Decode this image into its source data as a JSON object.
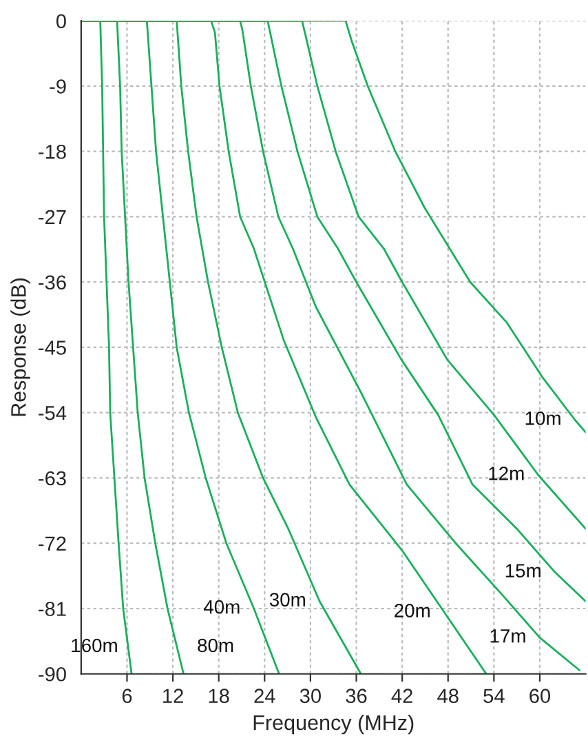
{
  "chart_data": {
    "type": "line",
    "xlabel": "Frequency (MHz)",
    "ylabel": "Response (dB)",
    "xlim": [
      0,
      66
    ],
    "xticks": [
      6,
      12,
      18,
      24,
      30,
      36,
      42,
      48,
      54,
      60
    ],
    "ylim": [
      -90,
      0
    ],
    "yticks": [
      0,
      -9,
      -18,
      -27,
      -36,
      -45,
      -54,
      -63,
      -72,
      -81,
      -90
    ],
    "grid": true,
    "marker": "none",
    "line_style": "solid",
    "series": [
      {
        "name": "160m",
        "color": "#1aaf5d",
        "x": [
          0,
          2.5,
          2.75,
          3.0,
          3.65,
          3.8,
          4.9,
          5.5,
          6.6
        ],
        "values": [
          0,
          0,
          -9,
          -27,
          -45,
          -54,
          -72,
          -81,
          -90
        ]
      },
      {
        "name": "80m",
        "color": "#1aaf5d",
        "x": [
          0,
          4.7,
          5.1,
          5.3,
          5.75,
          6.2,
          6.8,
          7.4,
          8.3,
          9.7,
          11.3,
          13.4
        ],
        "values": [
          0,
          0,
          -9,
          -18,
          -27,
          -36,
          -45,
          -54,
          -63,
          -72,
          -81,
          -90
        ]
      },
      {
        "name": "40m",
        "color": "#1aaf5d",
        "x": [
          0,
          8.6,
          9.2,
          9.8,
          10.7,
          11.6,
          12.5,
          14.1,
          16.3,
          19.0,
          22.6,
          25.9
        ],
        "values": [
          0,
          0,
          -9,
          -18,
          -27,
          -36,
          -45,
          -54,
          -63,
          -72,
          -81,
          -90
        ]
      },
      {
        "name": "30m",
        "color": "#1aaf5d",
        "x": [
          0,
          12.5,
          13.1,
          14.0,
          15.1,
          16.6,
          18.4,
          20.5,
          23.8,
          27.1,
          31.2,
          36.6
        ],
        "values": [
          0,
          0,
          -9,
          -18,
          -27,
          -36,
          -45,
          -54,
          -63,
          -70,
          -80,
          -90
        ]
      },
      {
        "name": "20m",
        "color": "#1aaf5d",
        "x": [
          0,
          17.0,
          17.5,
          18.1,
          19.3,
          20.8,
          22.6,
          26.5,
          30.7,
          35.1,
          42.0,
          47.5,
          53.0
        ],
        "values": [
          0,
          0,
          -1.6,
          -9,
          -18,
          -27,
          -31.4,
          -44,
          -54.6,
          -63.9,
          -73,
          -81.5,
          -90
        ]
      },
      {
        "name": "17m",
        "color": "#1aaf5d",
        "x": [
          0,
          20.8,
          21.1,
          22.2,
          23.8,
          25.8,
          27.7,
          30.7,
          36.6,
          42.6,
          49,
          55,
          60,
          65.2
        ],
        "values": [
          0,
          0,
          -1.3,
          -9,
          -18,
          -27,
          -31.4,
          -39.4,
          -51.2,
          -63.9,
          -72,
          -79,
          -85,
          -89.5
        ]
      },
      {
        "name": "15m",
        "color": "#1aaf5d",
        "x": [
          0,
          24.4,
          24.7,
          26.2,
          28.3,
          30.9,
          33.6,
          36.0,
          41.9,
          46.7,
          51.2,
          57,
          62,
          66
        ],
        "values": [
          0,
          0,
          -1.5,
          -9,
          -18,
          -27,
          -31.4,
          -36,
          -46.7,
          -54.3,
          -63.9,
          -70,
          -76,
          -80
        ]
      },
      {
        "name": "12m",
        "color": "#1aaf5d",
        "x": [
          0,
          28.9,
          29.4,
          30.9,
          33.3,
          36.3,
          39.6,
          42.0,
          47.9,
          54.0,
          59.8,
          66
        ],
        "values": [
          0,
          0,
          -2.2,
          -9,
          -18,
          -27,
          -31.4,
          -36,
          -46.7,
          -54.3,
          -62.6,
          -70
        ]
      },
      {
        "name": "10m",
        "color": "#1aaf5d",
        "x": [
          0,
          34.6,
          35.4,
          37.5,
          41.1,
          44.9,
          50.9,
          55.7,
          60.4,
          64.6,
          66
        ],
        "values": [
          0,
          0,
          -2.8,
          -9,
          -18,
          -25.7,
          -36,
          -41.6,
          -49.2,
          -55,
          -56.7
        ]
      }
    ]
  }
}
